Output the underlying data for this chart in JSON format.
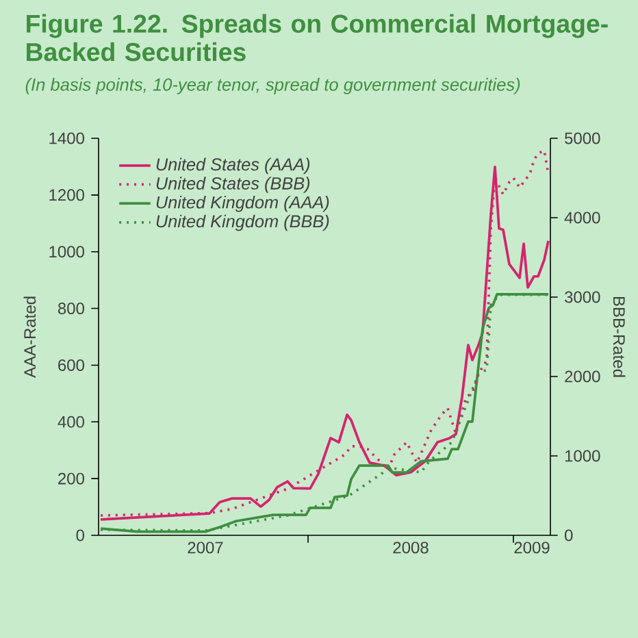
{
  "chart_data": {
    "type": "line",
    "title": "Figure 1.22. Spreads on Commercial Mortgage-Backed Securities",
    "subtitle": "(In basis points, 10-year tenor, spread to government securities)",
    "ylabel": "AAA-Rated",
    "y2label": "BBB-Rated",
    "xlim": [
      2006.98,
      2009.18
    ],
    "xticks": [
      {
        "value": 2008,
        "label": null
      },
      {
        "value": 2009,
        "label": null
      },
      {
        "value": 2007.5,
        "label": "2007"
      },
      {
        "value": 2008.5,
        "label": "2008"
      },
      {
        "value": 2009.09,
        "label": "2009"
      }
    ],
    "ylim": [
      0,
      1400
    ],
    "yticks": [
      0,
      200,
      400,
      600,
      800,
      1000,
      1200,
      1400
    ],
    "y2lim": [
      0,
      5000
    ],
    "y2ticks": [
      0,
      1000,
      2000,
      3000,
      4000,
      5000
    ],
    "legend": "top left",
    "marker": "none",
    "series": [
      {
        "name": "United States (AAA)",
        "color": "#d6246e",
        "line_style": "solid",
        "x": [
          2006.99,
          2007.52,
          2007.57,
          2007.63,
          2007.72,
          2007.77,
          2007.81,
          2007.85,
          2007.9,
          2007.93,
          2008.01,
          2008.05,
          2008.11,
          2008.15,
          2008.19,
          2008.21,
          2008.25,
          2008.3,
          2008.37,
          2008.43,
          2008.5,
          2008.57,
          2008.63,
          2008.69,
          2008.72,
          2008.75,
          2008.78,
          2008.8,
          2008.83,
          2008.85,
          2008.89,
          2008.91,
          2008.93,
          2008.95,
          2008.98,
          2009.03,
          2009.05,
          2009.07,
          2009.1,
          2009.12,
          2009.15,
          2009.17
        ],
        "values": [
          56,
          77,
          117,
          130,
          130,
          101,
          125,
          170,
          190,
          166,
          165,
          217,
          343,
          328,
          425,
          406,
          328,
          256,
          246,
          212,
          222,
          261,
          328,
          343,
          357,
          488,
          671,
          618,
          671,
          715,
          1130,
          1299,
          1082,
          1077,
          956,
          908,
          1028,
          874,
          913,
          913,
          971,
          1038
        ]
      },
      {
        "name": "United States (BBB)",
        "color": "#d6246e",
        "line_style": "dotted",
        "axis": "y2",
        "x": [
          2006.99,
          2007.52,
          2007.63,
          2007.9,
          2008.18,
          2008.21,
          2008.25,
          2008.29,
          2008.39,
          2008.42,
          2008.48,
          2008.53,
          2008.6,
          2008.65,
          2008.68,
          2008.72,
          2008.77,
          2008.8,
          2008.83,
          2008.87,
          2008.89,
          2008.91,
          2008.95,
          2008.98,
          2009.0,
          2009.03,
          2009.05,
          2009.08,
          2009.1,
          2009.12,
          2009.15,
          2009.17
        ],
        "values": [
          250,
          280,
          333,
          586,
          1017,
          1121,
          1121,
          1086,
          828,
          1017,
          1172,
          914,
          1328,
          1517,
          1603,
          1276,
          1741,
          1793,
          2034,
          2207,
          3862,
          4500,
          4293,
          4448,
          4500,
          4379,
          4448,
          4552,
          4724,
          4810,
          4845,
          4552
        ]
      },
      {
        "name": "United Kingdom (AAA)",
        "color": "#3f8f3f",
        "line_style": "solid",
        "x": [
          2006.99,
          2007.17,
          2007.5,
          2007.57,
          2007.65,
          2007.83,
          2007.99,
          2008.01,
          2008.11,
          2008.13,
          2008.19,
          2008.21,
          2008.25,
          2008.39,
          2008.41,
          2008.48,
          2008.55,
          2008.68,
          2008.7,
          2008.73,
          2008.78,
          2008.8,
          2008.83,
          2008.85,
          2008.88,
          2008.9,
          2008.92,
          2009.17
        ],
        "values": [
          24,
          13,
          13,
          29,
          50,
          72,
          72,
          97,
          97,
          135,
          140,
          198,
          246,
          246,
          222,
          222,
          261,
          270,
          304,
          304,
          401,
          401,
          599,
          729,
          801,
          811,
          850,
          850
        ]
      },
      {
        "name": "United Kingdom (BBB)",
        "color": "#3f8f3f",
        "line_style": "dotted",
        "axis": "y2",
        "x": [
          2006.99,
          2007.5,
          2007.9,
          2008.2,
          2008.4,
          2008.55,
          2008.59,
          2008.7,
          2008.83,
          2008.87,
          2008.89,
          2008.93,
          2009.17
        ],
        "values": [
          70,
          60,
          250,
          500,
          850,
          793,
          931,
          1172,
          2034,
          2086,
          2897,
          3030,
          3030
        ]
      }
    ]
  }
}
